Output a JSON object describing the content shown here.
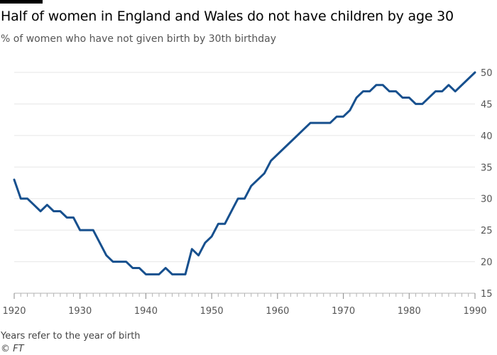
{
  "header": {
    "title": "Half of women in England and Wales do not have children by age 30",
    "subtitle": "% of women who have not given birth by 30th birthday"
  },
  "footer": {
    "note": "Years refer to the year of birth",
    "source": "© FT"
  },
  "colors": {
    "line": "#17508e",
    "grid": "#e6e6e6",
    "axis": "#b3b3b3",
    "tick_text": "#555555"
  },
  "chart_data": {
    "type": "line",
    "title": "Half of women in England and Wales do not have children by age 30",
    "subtitle": "% of women who have not given birth by 30th birthday",
    "xlabel": "",
    "ylabel": "",
    "xlim": [
      1920,
      1990
    ],
    "ylim": [
      15,
      50
    ],
    "y_axis_side": "right",
    "grid": true,
    "xticks": [
      1920,
      1930,
      1940,
      1950,
      1960,
      1970,
      1980,
      1990
    ],
    "yticks": [
      15,
      20,
      25,
      30,
      35,
      40,
      45,
      50
    ],
    "series": [
      {
        "x": [
          1920,
          1921,
          1922,
          1923,
          1924,
          1925,
          1926,
          1927,
          1928,
          1929,
          1930,
          1931,
          1932,
          1933,
          1934,
          1935,
          1936,
          1937,
          1938,
          1939,
          1940,
          1941,
          1942,
          1943,
          1944,
          1945,
          1946,
          1947,
          1948,
          1949,
          1950,
          1951,
          1952,
          1953,
          1954,
          1955,
          1956,
          1957,
          1958,
          1959,
          1960,
          1961,
          1962,
          1963,
          1964,
          1965,
          1966,
          1967,
          1968,
          1969,
          1970,
          1971,
          1972,
          1973,
          1974,
          1975,
          1976,
          1977,
          1978,
          1979,
          1980,
          1981,
          1982,
          1983,
          1984,
          1985,
          1986,
          1987,
          1988,
          1989,
          1990
        ],
        "values": [
          33,
          30,
          30,
          29,
          28,
          29,
          28,
          28,
          27,
          27,
          25,
          25,
          25,
          23,
          21,
          20,
          20,
          20,
          19,
          19,
          18,
          18,
          18,
          19,
          18,
          18,
          18,
          22,
          21,
          23,
          24,
          26,
          26,
          28,
          30,
          30,
          32,
          33,
          34,
          36,
          37,
          38,
          39,
          40,
          41,
          42,
          42,
          42,
          42,
          43,
          43,
          44,
          46,
          47,
          47,
          48,
          48,
          47,
          47,
          46,
          46,
          45,
          45,
          46,
          47,
          47,
          48,
          47,
          48,
          49,
          50
        ]
      }
    ]
  }
}
